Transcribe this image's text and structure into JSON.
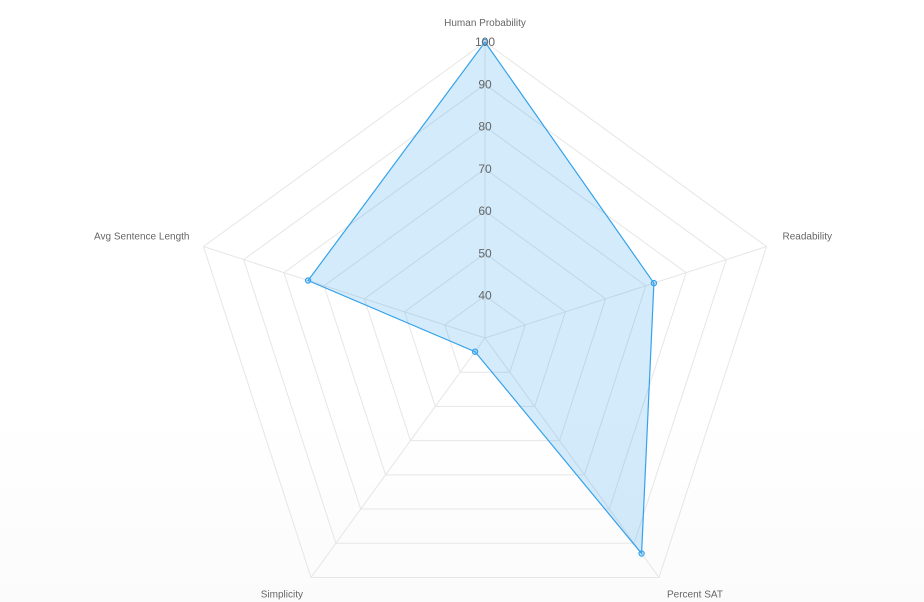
{
  "chart_data": {
    "type": "radar",
    "axes": [
      "Human Probability",
      "Readability",
      "Percent SAT",
      "Simplicity",
      "Avg Sentence Length"
    ],
    "tick_labels": [
      "40",
      "50",
      "60",
      "70",
      "80",
      "90",
      "100"
    ],
    "scale": {
      "min": 30,
      "max": 100,
      "step": 10
    },
    "series": [
      {
        "values": [
          100,
          72,
          93,
          34,
          74
        ],
        "stroke_color": "#36a2eb",
        "fill_color": "rgba(54,162,235,0.22)"
      }
    ],
    "grid_color": "#e6e6e6",
    "legend": "none"
  }
}
